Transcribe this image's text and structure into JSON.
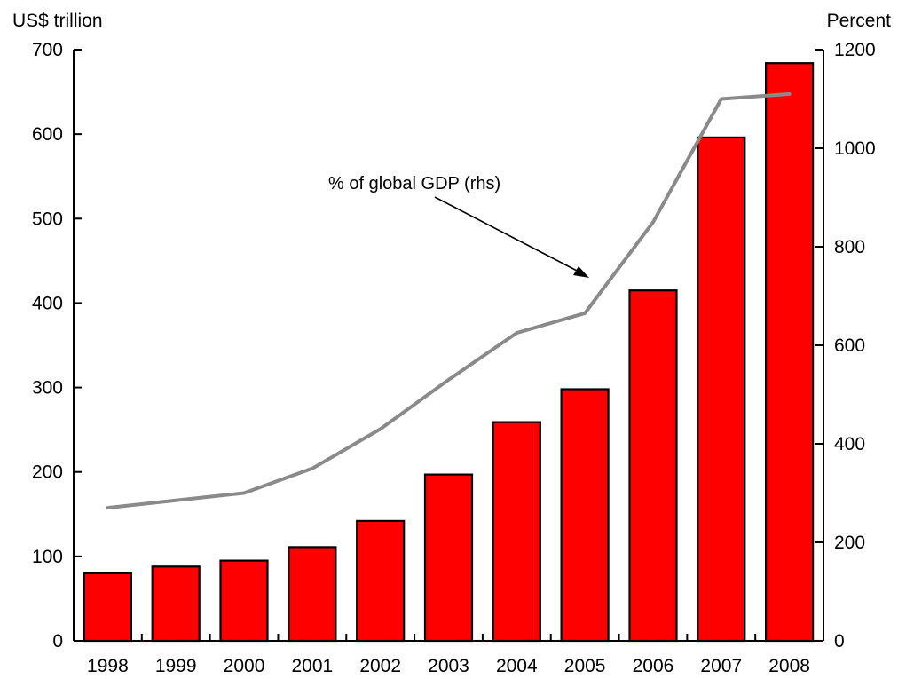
{
  "chart_data": {
    "type": "bar",
    "categories": [
      "1998",
      "1999",
      "2000",
      "2001",
      "2002",
      "2003",
      "2004",
      "2005",
      "2006",
      "2007",
      "2008"
    ],
    "series": [
      {
        "name": "",
        "axis": "left",
        "kind": "bar",
        "color": "#ff0000",
        "values": [
          80,
          88,
          95,
          111,
          142,
          197,
          259,
          298,
          415,
          596,
          684
        ]
      },
      {
        "name": "% of global GDP (rhs)",
        "axis": "right",
        "kind": "line",
        "color": "#8a8a8a",
        "values": [
          270,
          285,
          300,
          350,
          430,
          530,
          625,
          665,
          850,
          1100,
          1110
        ]
      }
    ],
    "left_axis": {
      "unit": "US$ trillion",
      "min": 0,
      "max": 700,
      "ticks": [
        0,
        100,
        200,
        300,
        400,
        500,
        600,
        700
      ]
    },
    "right_axis": {
      "unit": "Percent",
      "min": 0,
      "max": 1200,
      "ticks": [
        0,
        200,
        400,
        600,
        800,
        1000,
        1200
      ]
    },
    "annotation": "% of global GDP (rhs)",
    "grid": false
  }
}
